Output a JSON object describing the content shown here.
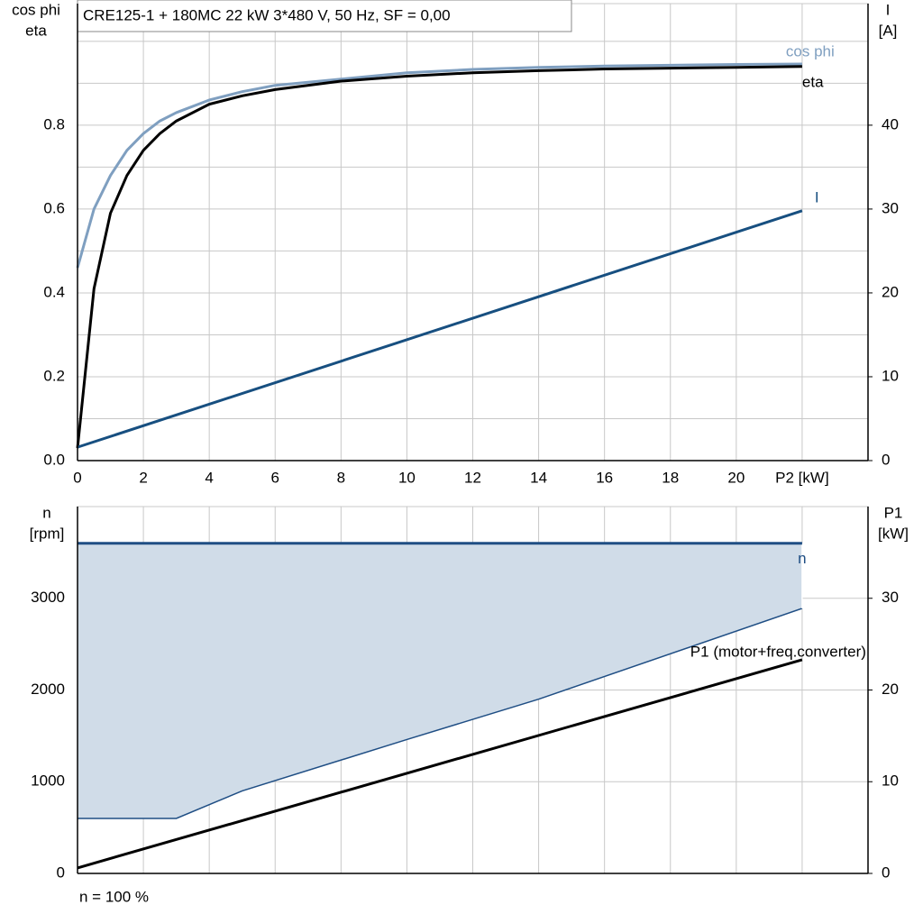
{
  "chart_data": [
    {
      "type": "line",
      "title": "CRE125-1 + 180MC   22 kW   3*480 V, 50 Hz, SF = 0,00",
      "y_label": [
        "cos phi",
        "eta"
      ],
      "y2_label": [
        "I",
        "[A]"
      ],
      "xlim": [
        0,
        24
      ],
      "xticks": [
        0,
        2,
        4,
        6,
        8,
        10,
        12,
        14,
        16,
        18,
        20,
        {
          "value": 22,
          "label": "P2 [kW]"
        }
      ],
      "ylim": [
        0,
        1.09
      ],
      "yticks": [
        {
          "value": 0,
          "label": "0.0"
        },
        0.2,
        0.4,
        0.6,
        0.8
      ],
      "y_minor_gridlines": [
        0.1,
        0.3,
        0.5,
        0.7,
        0.9,
        1.0
      ],
      "y2lim": [
        0,
        54.5
      ],
      "y2ticks": [
        0,
        10,
        20,
        30,
        40
      ],
      "grid": true,
      "series": [
        {
          "name": "cos phi",
          "color": "#7f9fc0",
          "x": [
            0,
            0.5,
            1,
            1.5,
            2,
            2.5,
            3,
            4,
            5,
            6,
            8,
            10,
            12,
            14,
            16,
            18,
            20,
            22
          ],
          "values": [
            0.46,
            0.6,
            0.68,
            0.74,
            0.78,
            0.81,
            0.83,
            0.86,
            0.88,
            0.895,
            0.91,
            0.925,
            0.933,
            0.938,
            0.941,
            0.943,
            0.945,
            0.946
          ]
        },
        {
          "name": "eta",
          "color": "#000000",
          "x": [
            0,
            0.5,
            1,
            1.5,
            2,
            2.5,
            3,
            4,
            5,
            6,
            8,
            10,
            12,
            14,
            16,
            18,
            20,
            22
          ],
          "values": [
            0.03,
            0.41,
            0.59,
            0.68,
            0.74,
            0.78,
            0.81,
            0.85,
            0.87,
            0.885,
            0.905,
            0.917,
            0.925,
            0.93,
            0.934,
            0.936,
            0.938,
            0.94
          ]
        },
        {
          "name": "I",
          "color": "#174f80",
          "axis": "y2",
          "x": [
            0,
            22
          ],
          "values": [
            1.6,
            29.8
          ]
        }
      ]
    },
    {
      "type": "line",
      "y_label": [
        "n",
        "[rpm]"
      ],
      "y2_label": [
        "P1",
        "[kW]"
      ],
      "note": "n = 100 %",
      "xlim": [
        0,
        24
      ],
      "xticks": [
        0,
        2,
        4,
        6,
        8,
        10,
        12,
        14,
        16,
        18,
        20,
        22
      ],
      "show_xtick_labels": false,
      "ylim": [
        0,
        4000
      ],
      "yticks": [
        0,
        1000,
        2000,
        3000
      ],
      "y2lim": [
        0,
        40
      ],
      "y2ticks": [
        0,
        10,
        20,
        30
      ],
      "grid": true,
      "series": [
        {
          "name": "n",
          "color": "#1f4e84",
          "area_color": "#d0dce8",
          "x": [
            0,
            22
          ],
          "values": [
            3600,
            3600
          ],
          "lower": {
            "x": [
              0,
              3,
              5,
              10,
              14,
              22
            ],
            "values": [
              600,
              600,
              900,
              1460,
              1900,
              2890
            ]
          }
        },
        {
          "name": "P1 (motor+freq.converter)",
          "color": "#000000",
          "axis": "y2",
          "x": [
            0,
            22
          ],
          "values": [
            0.6,
            23.3
          ]
        }
      ]
    }
  ]
}
